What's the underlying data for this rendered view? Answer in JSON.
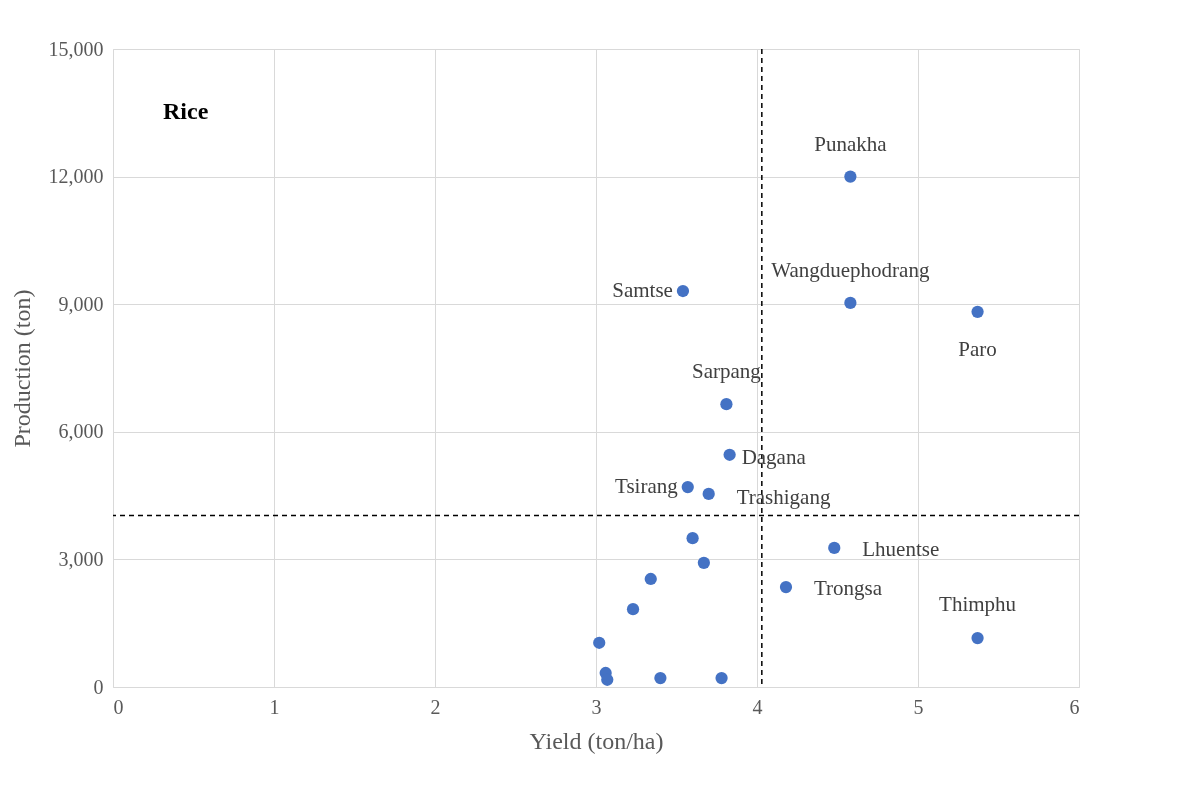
{
  "chart_data": {
    "type": "scatter",
    "title": "Rice",
    "xlabel": "Yield (ton/ha)",
    "ylabel": "Production (ton)",
    "x": [
      4.58,
      4.58,
      5.37,
      3.54,
      3.81,
      3.83,
      3.57,
      3.7,
      4.48,
      4.18,
      5.37,
      3.6,
      3.67,
      3.34,
      3.23,
      3.02,
      3.06,
      3.07,
      3.4,
      3.78
    ],
    "series": [
      {
        "color": "#4472c4",
        "values": [
          12000,
          9030,
          8820,
          9310,
          6650,
          5460,
          4700,
          4540,
          3270,
          2350,
          1150,
          3500,
          2920,
          2540,
          1830,
          1040,
          330,
          170,
          210,
          210
        ]
      }
    ],
    "marker": "circle",
    "grid": true,
    "xlim": [
      0,
      6
    ],
    "xticks": [
      0,
      1,
      2,
      3,
      4,
      5,
      6
    ],
    "ylim": [
      0,
      15000
    ],
    "yticks": [
      0,
      {
        "value": 3000,
        "label": "3,000"
      },
      {
        "value": 6000,
        "label": "6,000"
      },
      {
        "value": 9000,
        "label": "9,000"
      },
      {
        "value": 12000,
        "label": "12,000"
      },
      {
        "value": 15000,
        "label": "15,000"
      }
    ],
    "ref_lines": [
      {
        "axis": "x",
        "value": 4.03,
        "line_style": "dashed",
        "color": "#000000"
      },
      {
        "axis": "y",
        "value": 4030,
        "line_style": "dashed",
        "color": "#000000"
      }
    ],
    "annotations": [
      {
        "text": "Punakha",
        "x": 4.58,
        "y": 12000
      },
      {
        "text": "Wangduephodrang",
        "x": 4.58,
        "y": 9030
      },
      {
        "text": "Paro",
        "x": 5.37,
        "y": 8820
      },
      {
        "text": "Samtse",
        "x": 3.54,
        "y": 9310
      },
      {
        "text": "Sarpang",
        "x": 3.81,
        "y": 6650
      },
      {
        "text": "Dagana",
        "x": 3.83,
        "y": 5460
      },
      {
        "text": "Tsirang",
        "x": 3.57,
        "y": 4700
      },
      {
        "text": "Trashigang",
        "x": 3.7,
        "y": 4540
      },
      {
        "text": "Lhuentse",
        "x": 4.48,
        "y": 3270
      },
      {
        "text": "Trongsa",
        "x": 4.18,
        "y": 2350
      },
      {
        "text": "Thimphu",
        "x": 5.37,
        "y": 1150
      }
    ]
  }
}
